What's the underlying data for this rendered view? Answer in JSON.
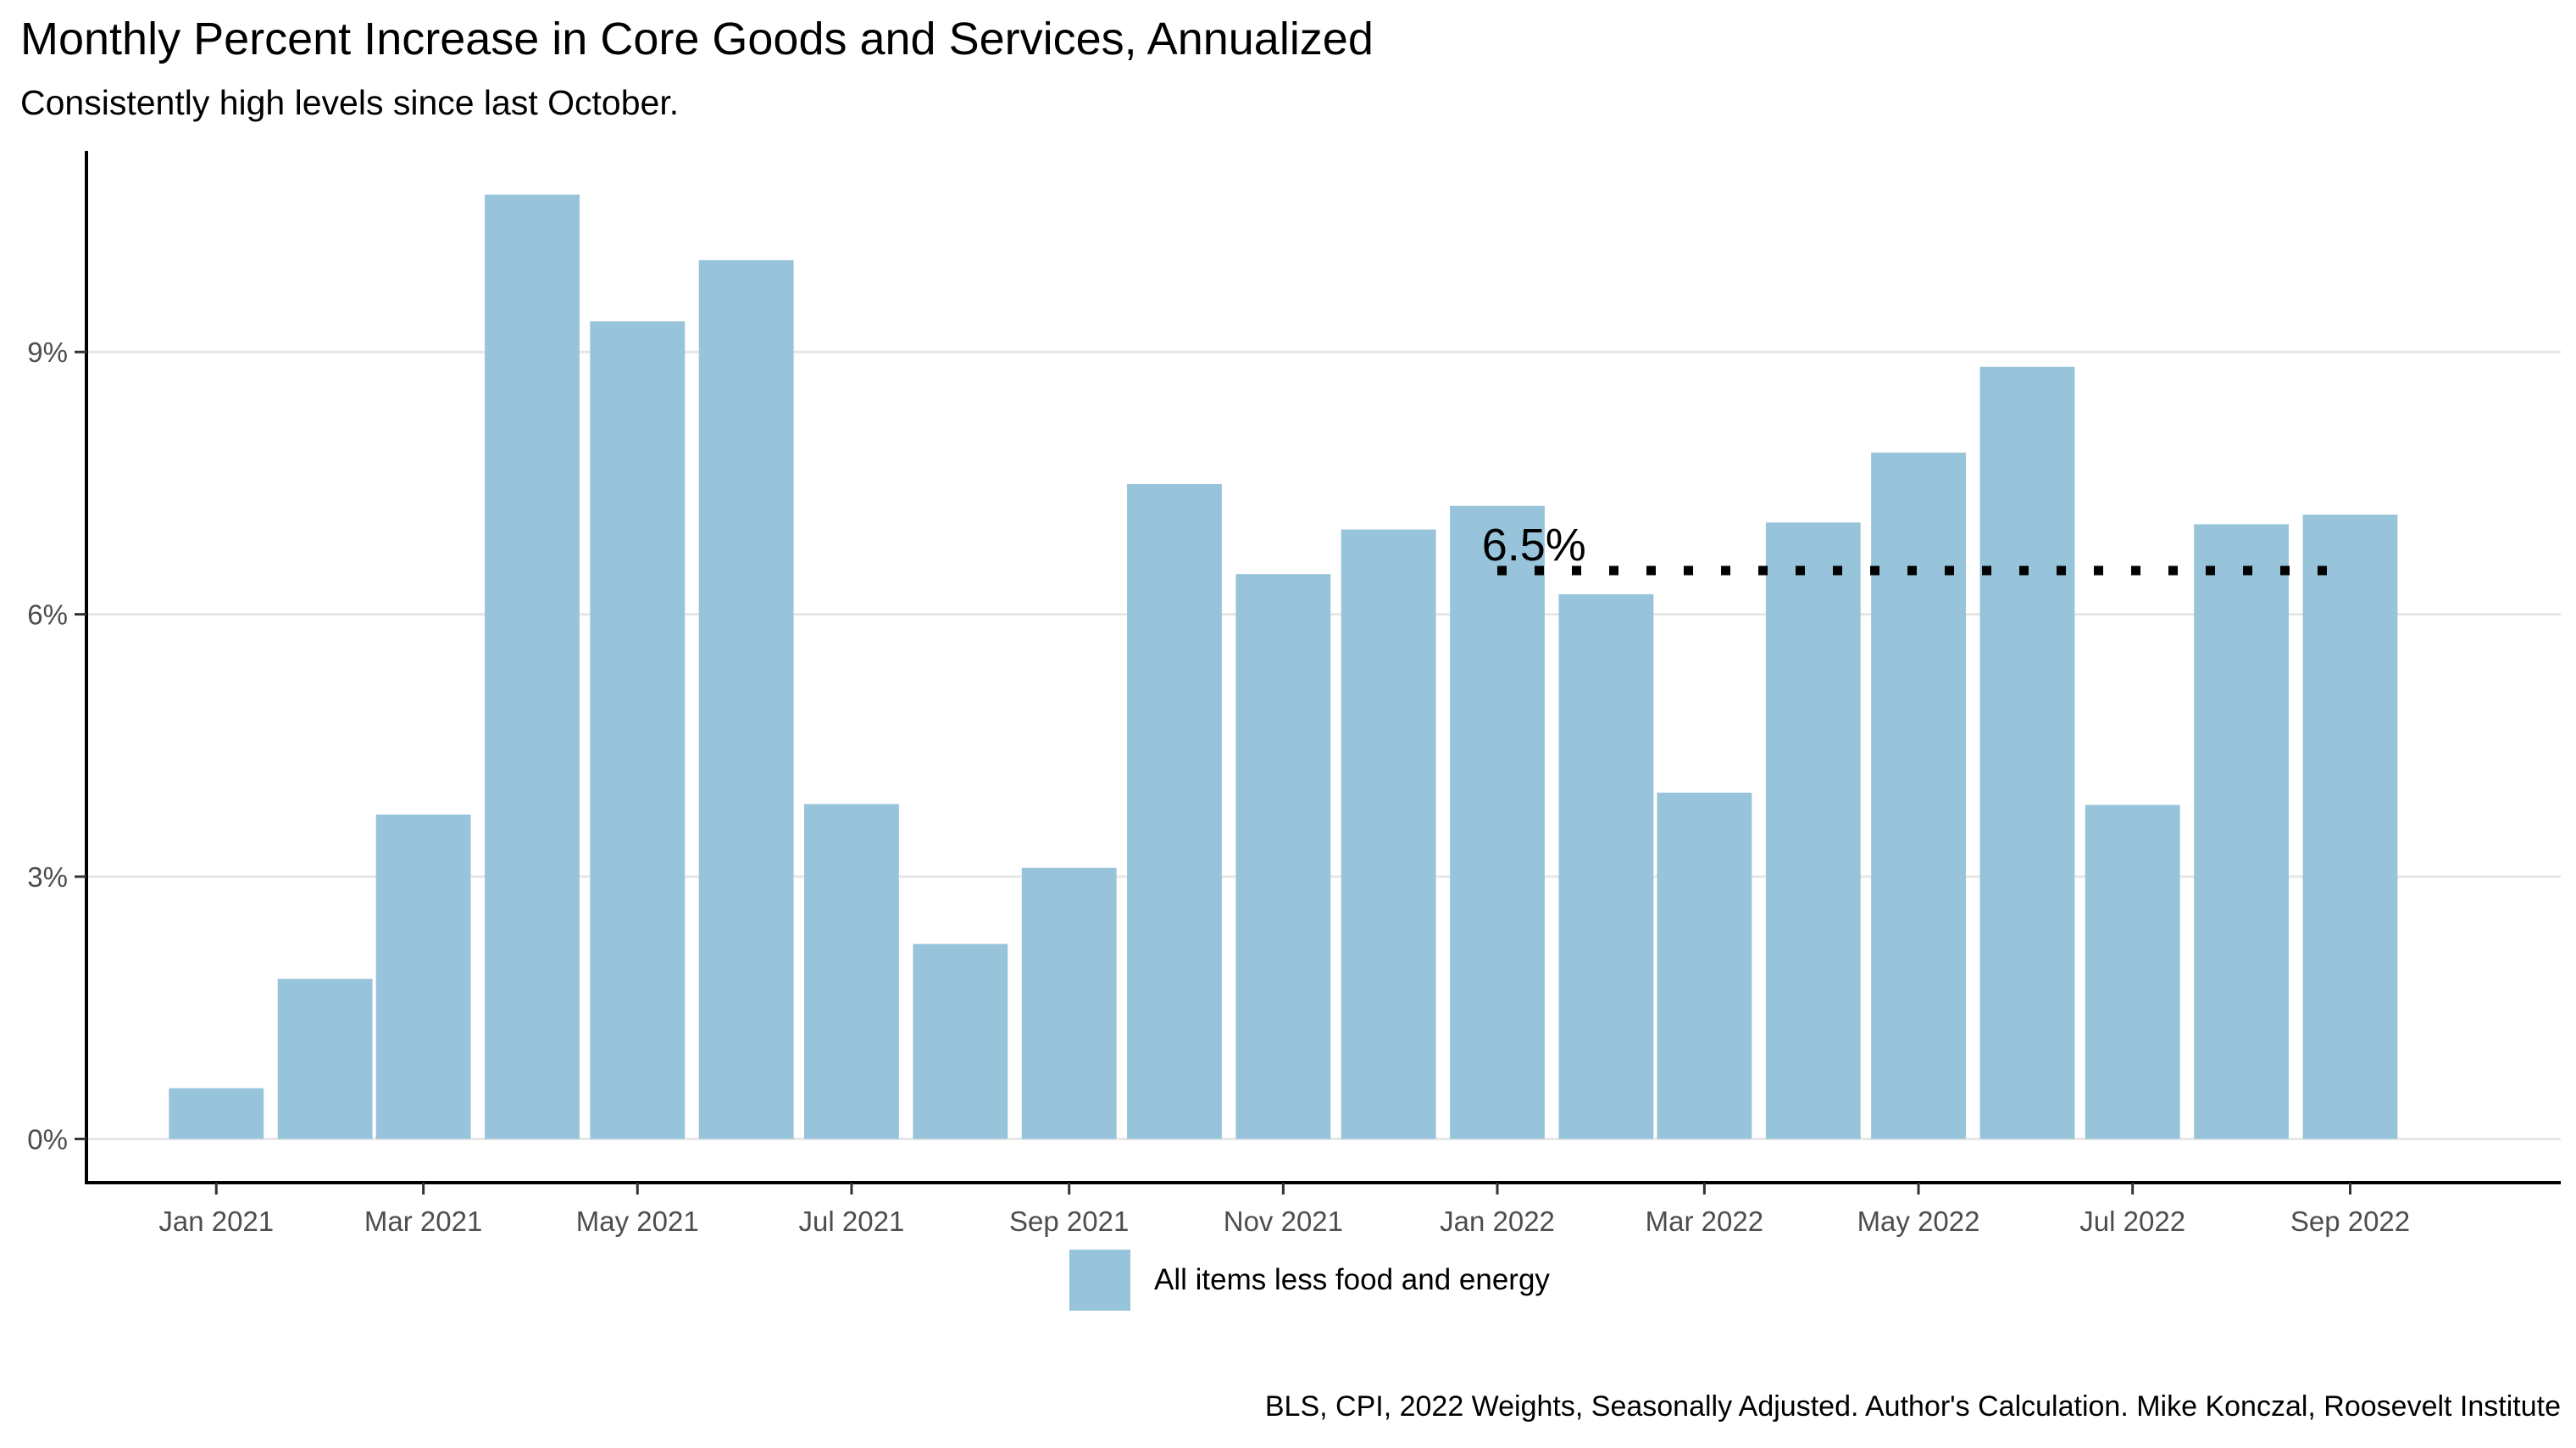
{
  "colors": {
    "bar": "#97c3db",
    "grid": "#e6e6e6",
    "axis": "#000000",
    "reference_line": "#000000"
  },
  "chart_data": {
    "type": "bar",
    "title": "Monthly Percent Increase in Core Goods and Services, Annualized",
    "subtitle": "Consistently high levels since last October.",
    "caption": "BLS, CPI, 2022 Weights, Seasonally Adjusted. Author's Calculation. Mike Konczal, Roosevelt Institute",
    "xlabel": "",
    "ylabel": "",
    "x_dates": [
      "2021-01-01",
      "2021-02-01",
      "2021-03-01",
      "2021-04-01",
      "2021-05-01",
      "2021-06-01",
      "2021-07-01",
      "2021-08-01",
      "2021-09-01",
      "2021-10-01",
      "2021-11-01",
      "2021-12-01",
      "2022-01-01",
      "2022-02-01",
      "2022-03-01",
      "2022-04-01",
      "2022-05-01",
      "2022-06-01",
      "2022-07-01",
      "2022-08-01",
      "2022-09-01"
    ],
    "series": [
      {
        "name": "All items less food and energy",
        "values": [
          0.58,
          1.83,
          3.71,
          10.8,
          9.35,
          10.05,
          3.83,
          2.23,
          3.1,
          7.49,
          6.46,
          6.97,
          7.24,
          6.23,
          3.96,
          7.05,
          7.85,
          8.83,
          3.82,
          7.03,
          7.14
        ]
      }
    ],
    "x_ticks": [
      {
        "date": "2021-01-01",
        "label": "Jan 2021"
      },
      {
        "date": "2021-03-01",
        "label": "Mar 2021"
      },
      {
        "date": "2021-05-01",
        "label": "May 2021"
      },
      {
        "date": "2021-07-01",
        "label": "Jul 2021"
      },
      {
        "date": "2021-09-01",
        "label": "Sep 2021"
      },
      {
        "date": "2021-11-01",
        "label": "Nov 2021"
      },
      {
        "date": "2022-01-01",
        "label": "Jan 2022"
      },
      {
        "date": "2022-03-01",
        "label": "Mar 2022"
      },
      {
        "date": "2022-05-01",
        "label": "May 2022"
      },
      {
        "date": "2022-07-01",
        "label": "Jul 2022"
      },
      {
        "date": "2022-09-01",
        "label": "Sep 2022"
      }
    ],
    "y_ticks": [
      {
        "value": 0,
        "label": "0%"
      },
      {
        "value": 3,
        "label": "3%"
      },
      {
        "value": 6,
        "label": "6%"
      },
      {
        "value": 9,
        "label": "9%"
      }
    ],
    "ylim": [
      -0.5,
      11.3
    ],
    "xlim": [
      "2020-11-25",
      "2022-10-31"
    ],
    "grid": "horizontal-major",
    "legend_position": "bottom",
    "reference_line": {
      "y": 6.5,
      "from": "2022-01-01",
      "to": "2022-09-01",
      "style": "dotted",
      "label": "6.5%"
    }
  }
}
